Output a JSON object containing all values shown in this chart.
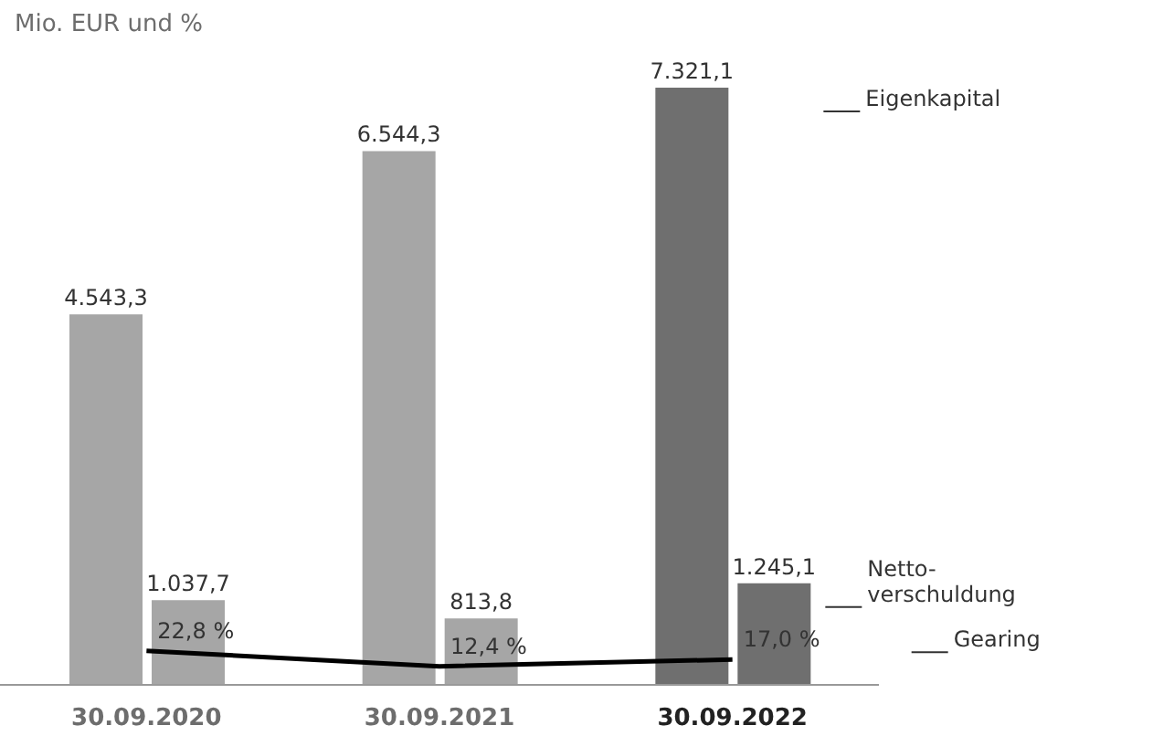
{
  "chart_data": {
    "type": "bar",
    "ylabel": "Mio. EUR und %",
    "categories": [
      "30.09.2020",
      "30.09.2021",
      "30.09.2022"
    ],
    "series": [
      {
        "name": "Eigenkapital",
        "type": "bar",
        "colors": [
          "#a6a6a6",
          "#a6a6a6",
          "#6f6f6f"
        ],
        "values": [
          4543.3,
          6544.3,
          7321.1
        ],
        "value_labels": [
          "4.543,3",
          "6.544,3",
          "7.321,1"
        ]
      },
      {
        "name": "Netto- verschuldung",
        "type": "bar",
        "colors": [
          "#a6a6a6",
          "#a6a6a6",
          "#6f6f6f"
        ],
        "values": [
          1037.7,
          813.8,
          1245.1
        ],
        "value_labels": [
          "1.037,7",
          "813,8",
          "1.245,1"
        ]
      },
      {
        "name": "Gearing",
        "type": "line",
        "axis": "y2",
        "color": "#000000",
        "values": [
          22.8,
          12.4,
          17.0
        ],
        "value_labels": [
          "22,8 %",
          "12,4 %",
          "17,0 %"
        ]
      }
    ],
    "y2lim": [
      0,
      400
    ],
    "grid": false,
    "legend": false,
    "marker": "none"
  }
}
